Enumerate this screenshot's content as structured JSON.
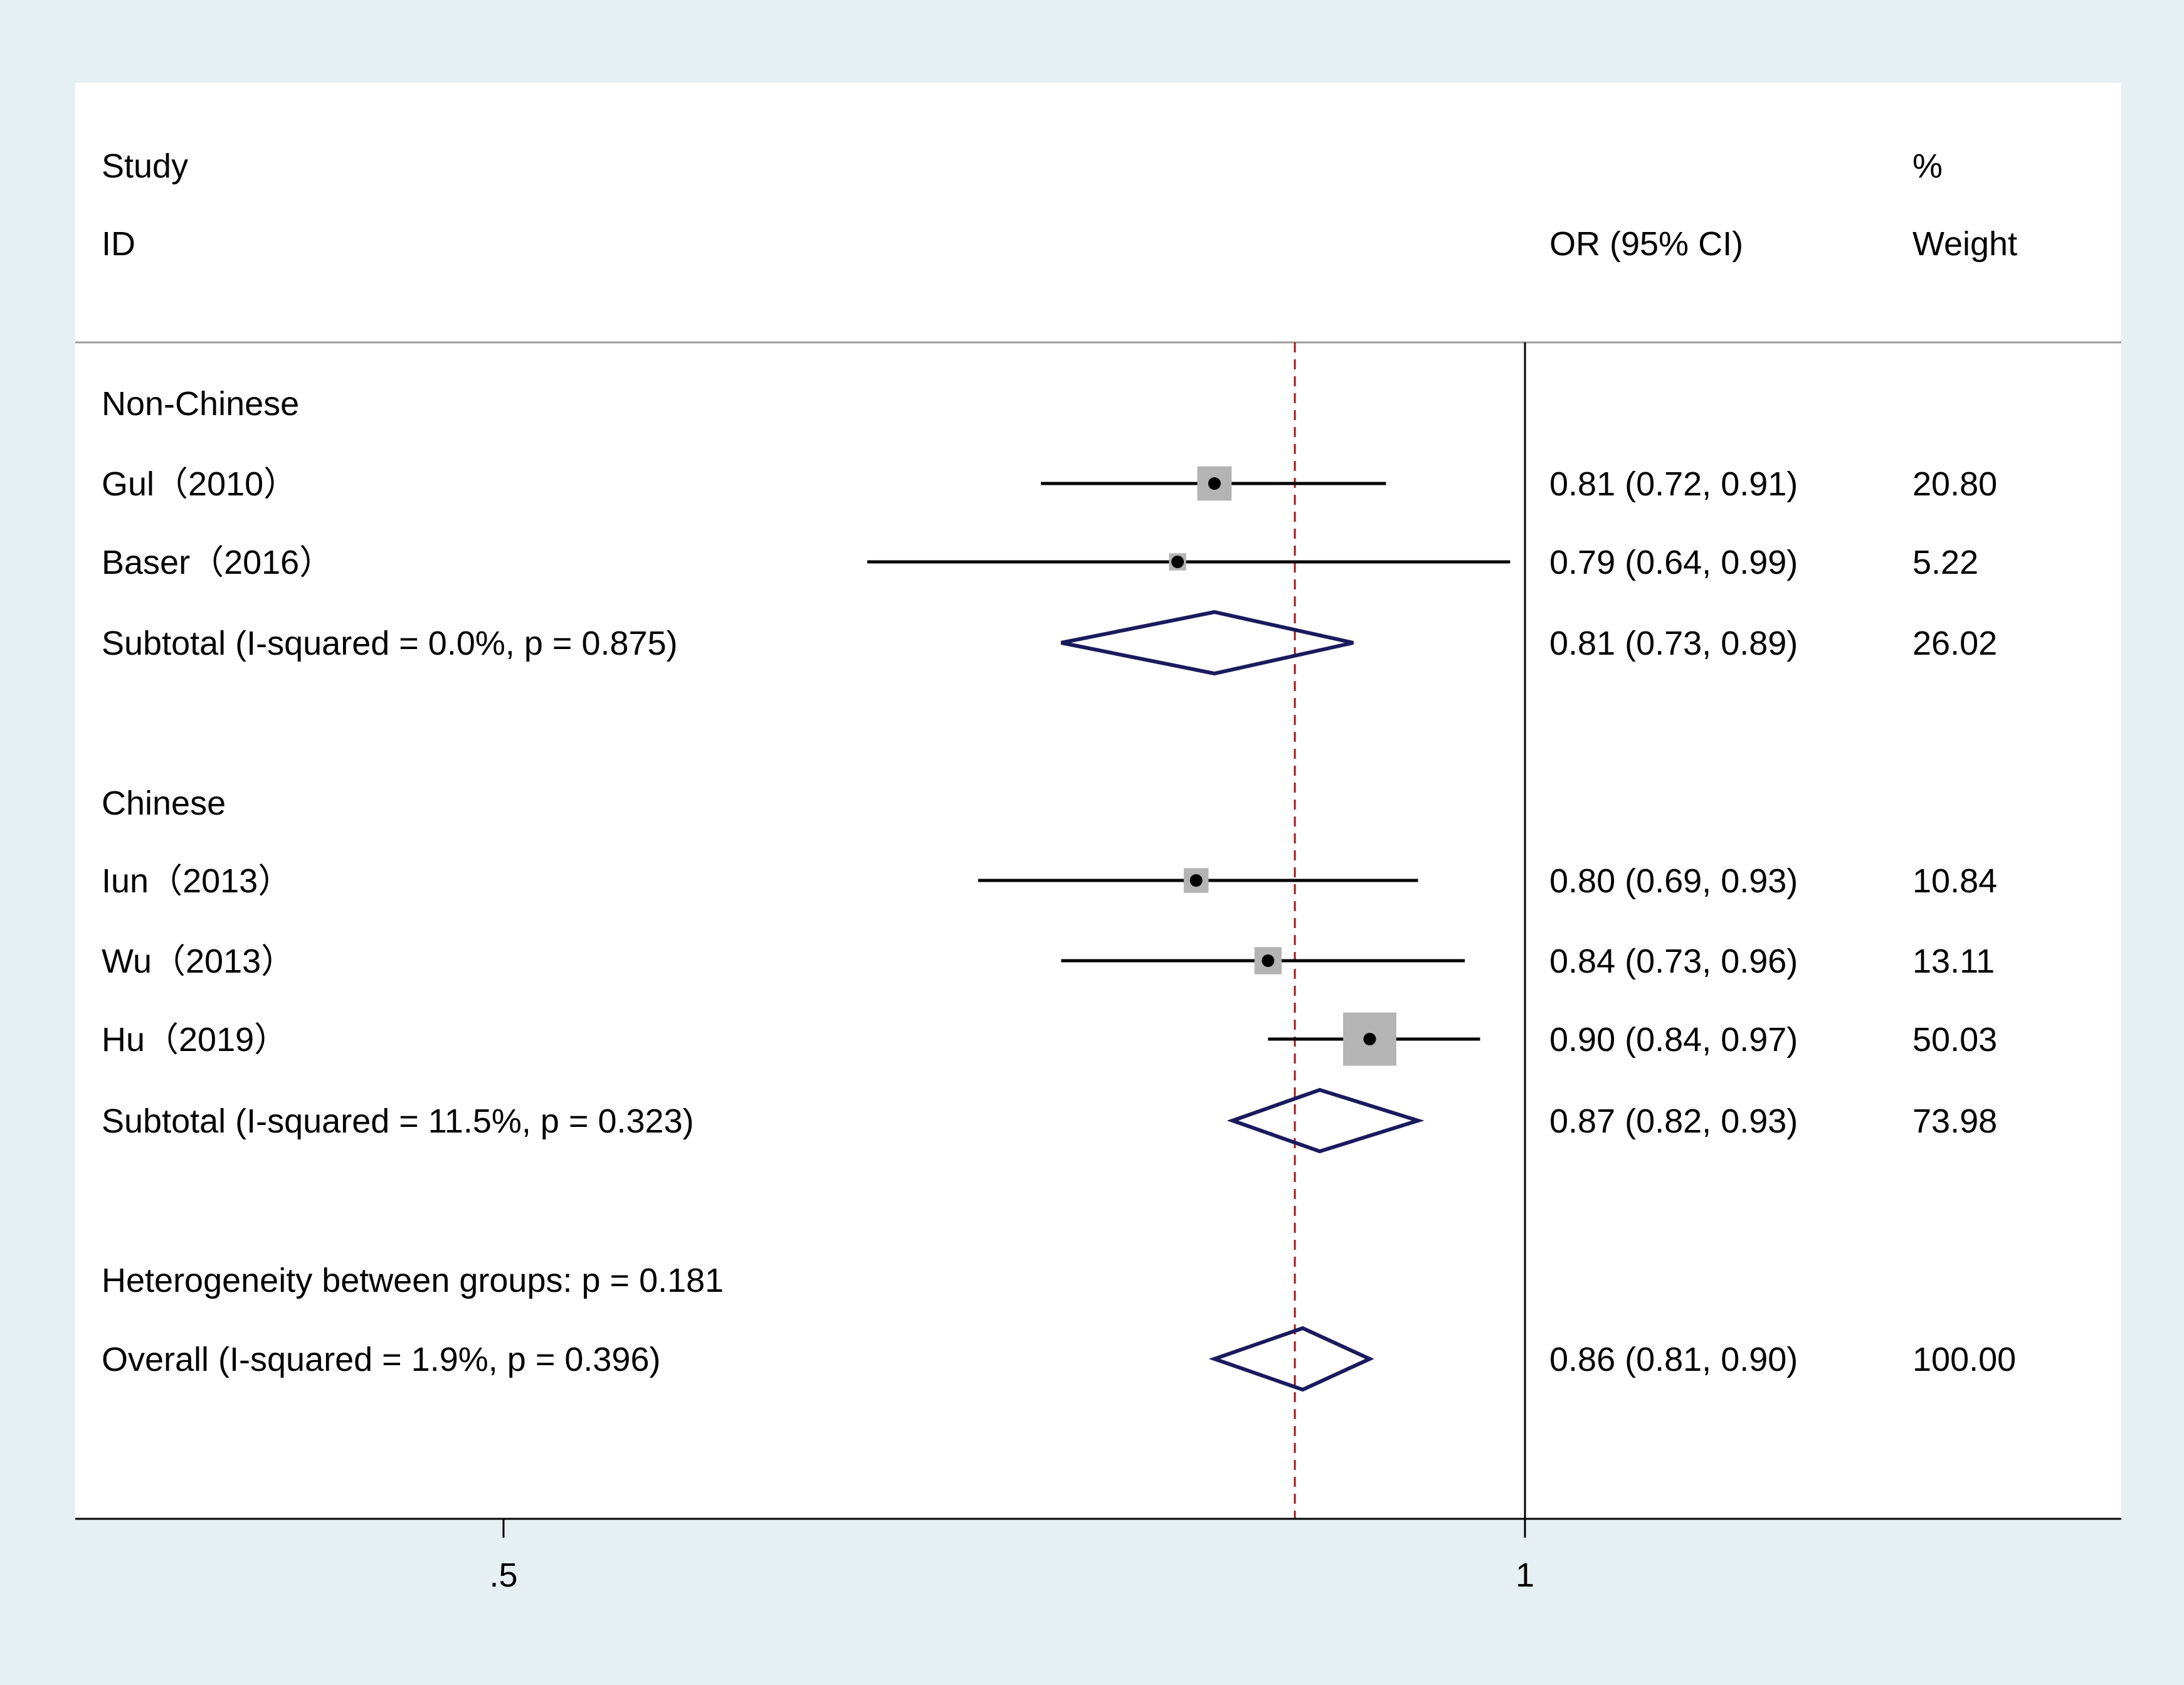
{
  "chart_data": {
    "type": "forest",
    "header": {
      "col1_line1": "Study",
      "col1_line2": "ID",
      "col2": "OR (95% CI)",
      "col3_line1": "%",
      "col3_line2": "Weight"
    },
    "rows": [
      {
        "kind": "group",
        "label": "Non-Chinese"
      },
      {
        "kind": "study",
        "label": "Gul（2010）",
        "or": 0.81,
        "lo": 0.72,
        "hi": 0.91,
        "ci_text": "0.81 (0.72, 0.91)",
        "weight": 20.8,
        "weight_text": "20.80"
      },
      {
        "kind": "study",
        "label": "Baser（2016）",
        "or": 0.79,
        "lo": 0.64,
        "hi": 0.99,
        "ci_text": "0.79 (0.64, 0.99)",
        "weight": 5.22,
        "weight_text": "5.22"
      },
      {
        "kind": "subtotal",
        "label": "Subtotal  (I-squared = 0.0%, p = 0.875)",
        "or": 0.81,
        "lo": 0.73,
        "hi": 0.89,
        "ci_text": "0.81 (0.73, 0.89)",
        "weight": 26.02,
        "weight_text": "26.02"
      },
      {
        "kind": "blank"
      },
      {
        "kind": "group",
        "label": "Chinese"
      },
      {
        "kind": "study",
        "label": "Iun（2013）",
        "or": 0.8,
        "lo": 0.69,
        "hi": 0.93,
        "ci_text": "0.80 (0.69, 0.93)",
        "weight": 10.84,
        "weight_text": "10.84"
      },
      {
        "kind": "study",
        "label": "Wu（2013）",
        "or": 0.84,
        "lo": 0.73,
        "hi": 0.96,
        "ci_text": "0.84 (0.73, 0.96)",
        "weight": 13.11,
        "weight_text": "13.11"
      },
      {
        "kind": "study",
        "label": "Hu（2019）",
        "or": 0.9,
        "lo": 0.84,
        "hi": 0.97,
        "ci_text": "0.90 (0.84, 0.97)",
        "weight": 50.03,
        "weight_text": "50.03"
      },
      {
        "kind": "subtotal",
        "label": "Subtotal  (I-squared = 11.5%, p = 0.323)",
        "or": 0.87,
        "lo": 0.82,
        "hi": 0.93,
        "ci_text": "0.87 (0.82, 0.93)",
        "weight": 73.98,
        "weight_text": "73.98"
      },
      {
        "kind": "blank"
      },
      {
        "kind": "note",
        "label": "Heterogeneity between groups: p = 0.181"
      },
      {
        "kind": "overall",
        "label": "Overall  (I-squared = 1.9%, p = 0.396)",
        "or": 0.86,
        "lo": 0.81,
        "hi": 0.9,
        "ci_text": "0.86 (0.81, 0.90)",
        "weight": 100,
        "weight_text": "100.00"
      }
    ],
    "x_scale": "log",
    "xlim": [
      0.375,
      1.0
    ],
    "x_ticks": [
      {
        "value": 0.5,
        "label": ".5"
      },
      {
        "value": 1,
        "label": "1"
      }
    ],
    "null_line": 1,
    "overall_line": 0.86,
    "colors": {
      "background": "#e6eff2",
      "panel": "#ffffff",
      "box": "#b4b4b4",
      "diamond": "#1a1a5e",
      "overall_line": "#9b1b1b"
    }
  }
}
